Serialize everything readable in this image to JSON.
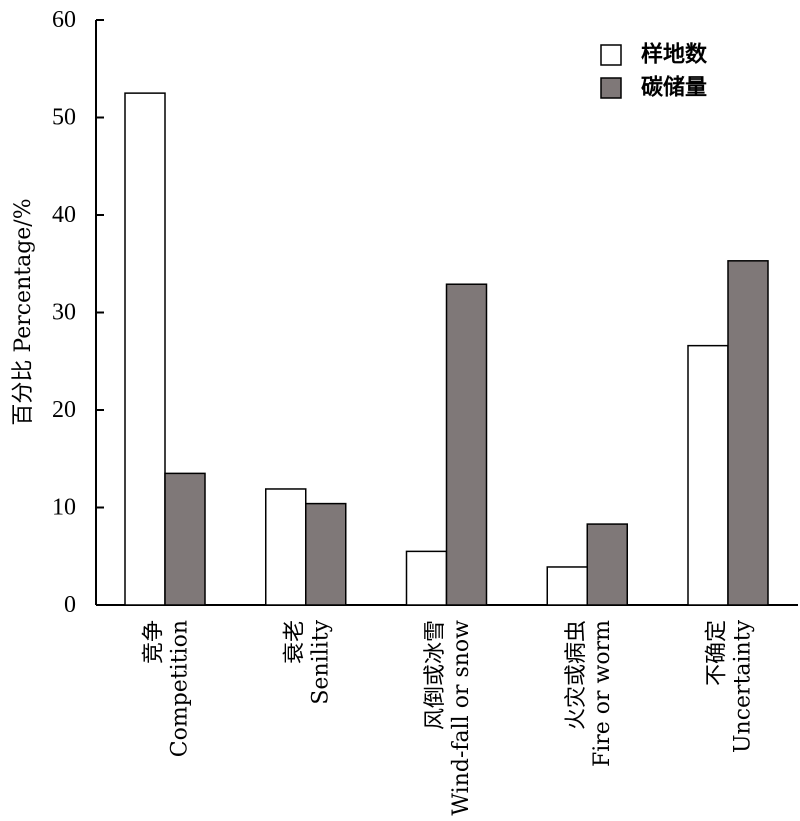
{
  "chart_data": {
    "type": "bar",
    "categories": [
      {
        "zh": "竞争",
        "en": "Competition"
      },
      {
        "zh": "衰老",
        "en": "Senility"
      },
      {
        "zh": "风倒或冰雪",
        "en": "Wind-fall or snow"
      },
      {
        "zh": "火灾或病虫",
        "en": "Fire or worm"
      },
      {
        "zh": "不确定",
        "en": "Uncertainty"
      }
    ],
    "series": [
      {
        "name": "样地数",
        "color": "#ffffff",
        "values": [
          52.5,
          11.9,
          5.5,
          3.9,
          26.6
        ]
      },
      {
        "name": "碳储量",
        "color": "#7f7878",
        "values": [
          13.5,
          10.4,
          32.9,
          8.3,
          35.3
        ]
      }
    ],
    "ylabel": "百分比 Percentage/%",
    "xlabel": "",
    "ylim": [
      0,
      60
    ],
    "yticks": [
      0,
      10,
      20,
      30,
      40,
      50,
      60
    ],
    "grid": false,
    "legend_position": "top-right"
  }
}
